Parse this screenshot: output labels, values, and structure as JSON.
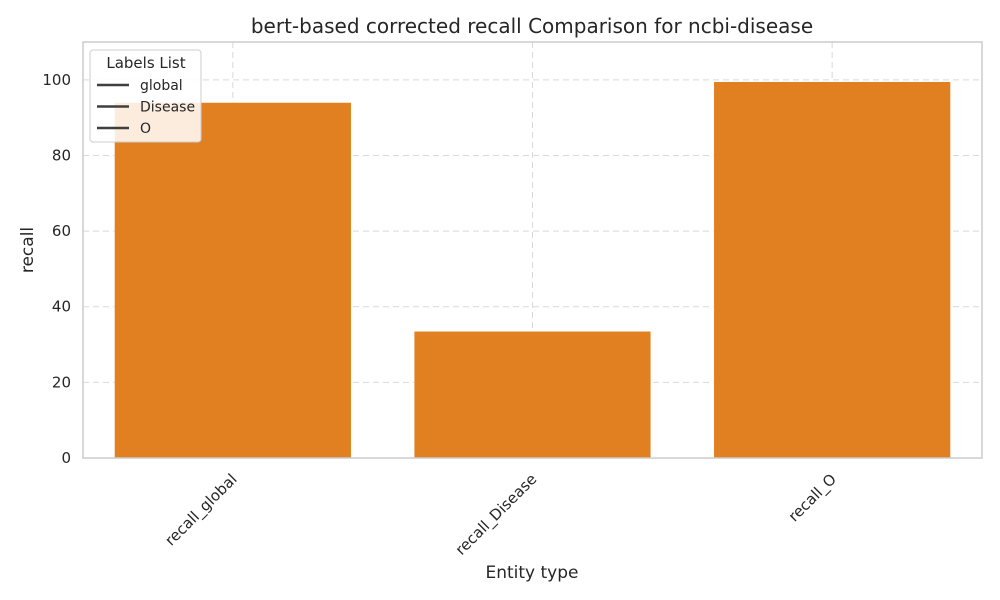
{
  "chart_data": {
    "type": "bar",
    "title": "bert-based corrected recall Comparison for ncbi-disease",
    "xlabel": "Entity type",
    "ylabel": "recall",
    "categories": [
      "recall_global",
      "recall_Disease",
      "recall_O"
    ],
    "values": [
      94,
      33.5,
      99.5
    ],
    "ylim": [
      0,
      110
    ],
    "yticks": [
      0,
      20,
      40,
      60,
      80,
      100
    ],
    "bar_color": "#e08020",
    "grid": true,
    "legend": {
      "title": "Labels List",
      "placement": "top-left",
      "entries": [
        "global",
        "Disease",
        "O"
      ],
      "line_color": "#3f3f3f"
    }
  }
}
